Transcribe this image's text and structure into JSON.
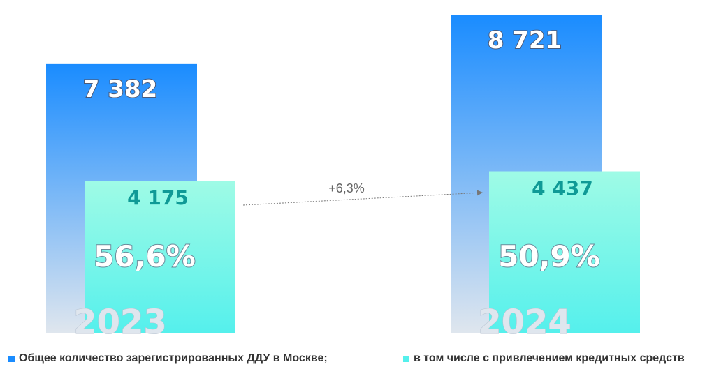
{
  "chart_data": {
    "type": "bar",
    "categories": [
      "2023",
      "2024"
    ],
    "series": [
      {
        "name": "Общее количество зарегистрированных ДДУ в Москве;",
        "values": [
          7382,
          8721
        ],
        "value_labels": [
          "7 382",
          "8 721"
        ],
        "color_top": "#1a8cff",
        "color_bottom": "#dfe6ee"
      },
      {
        "name": "в том числе с привлечением кредитных средств",
        "values": [
          4175,
          4437
        ],
        "value_labels": [
          "4 175",
          "4 437"
        ],
        "color_top": "#9ffbe6",
        "color_bottom": "#55f0ec"
      }
    ],
    "share_labels": [
      "56,6%",
      "50,9%"
    ],
    "annotation": "+6,3%",
    "year_labels": [
      "2023",
      "2024"
    ],
    "ylim": [
      0,
      8721
    ],
    "legend_position": "bottom",
    "grid": false
  }
}
